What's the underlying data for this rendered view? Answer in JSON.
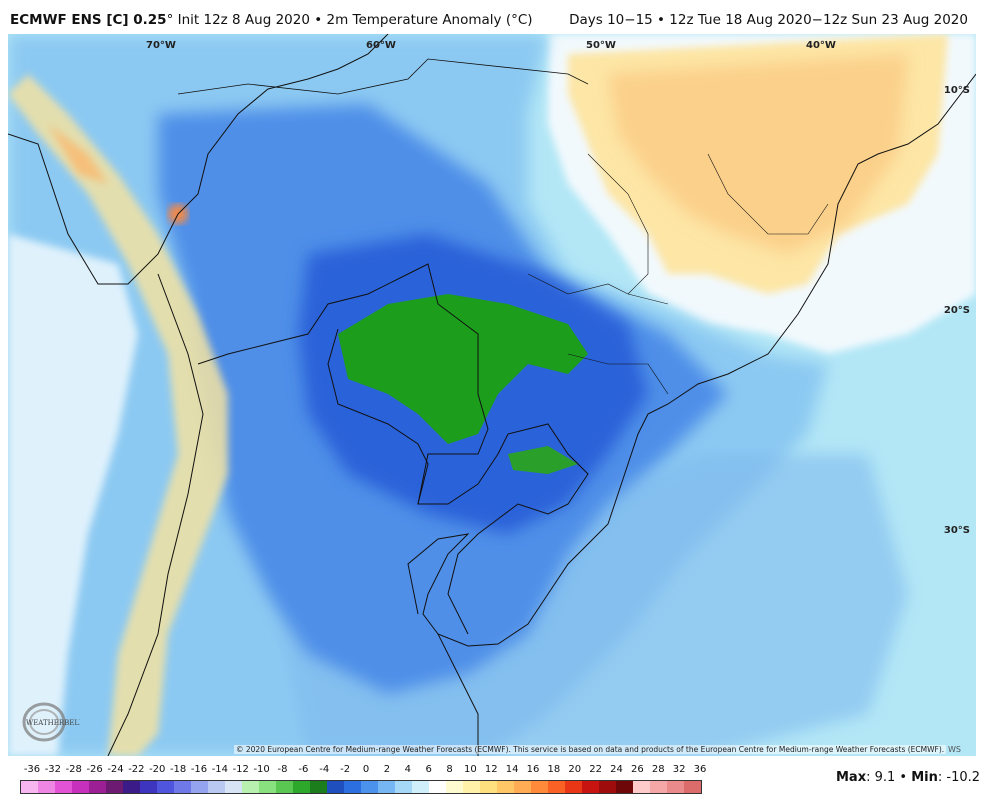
{
  "header": {
    "model": "ECMWF ENS [C] 0.25",
    "init_text": "° Init 12z 8 Aug 2020 • 2m Temperature Anomaly (°C)",
    "valid_text": "Days 10−15 • 12z Tue 18 Aug 2020−12z Sun 23 Aug 2020"
  },
  "map": {
    "lon_labels": [
      "70°W",
      "60°W",
      "50°W",
      "40°W"
    ],
    "lat_labels": [
      "10°S",
      "20°S",
      "30°S"
    ],
    "copyright": "© 2020 European Centre for Medium-range Weather Forecasts (ECMWF). This service is based on data and products of the European Centre for Medium-range Weather Forecasts (ECMWF).",
    "ws_mark": "WS",
    "logo_text": "WEATHERBELL"
  },
  "legend": {
    "ticks": [
      "-36",
      "-32",
      "-28",
      "-26",
      "-24",
      "-22",
      "-20",
      "-18",
      "-16",
      "-14",
      "-12",
      "-10",
      "-8",
      "-6",
      "-4",
      "-2",
      "0",
      "2",
      "4",
      "6",
      "8",
      "10",
      "12",
      "14",
      "16",
      "18",
      "20",
      "22",
      "24",
      "26",
      "28",
      "32",
      "36"
    ],
    "colors": [
      "#f7b6f0",
      "#ef86e3",
      "#e253d6",
      "#c72fbd",
      "#9c1f95",
      "#6c1a72",
      "#3b1b87",
      "#3d35c0",
      "#4f55dd",
      "#6f7ae8",
      "#94a4ee",
      "#b9c8f1",
      "#d6e4f5",
      "#b8f0b0",
      "#88e07e",
      "#5ac752",
      "#2ea82a",
      "#1c7d1c",
      "#1f4fbf",
      "#2b6fe0",
      "#4b92ec",
      "#76b6f2",
      "#a5d7f6",
      "#cfeffb",
      "#ffffff",
      "#fffbd0",
      "#fff1a8",
      "#ffe07f",
      "#ffc766",
      "#ffac54",
      "#ff8a3a",
      "#f96125",
      "#e83617",
      "#c81410",
      "#9e0c0c",
      "#6e0808",
      "#ffcaca",
      "#f5a6a6",
      "#ea8a8a",
      "#dc6c6c"
    ],
    "max_label": "Max",
    "max_value": ": 9.1",
    "min_label": "Min",
    "min_value": ": -10.2"
  }
}
